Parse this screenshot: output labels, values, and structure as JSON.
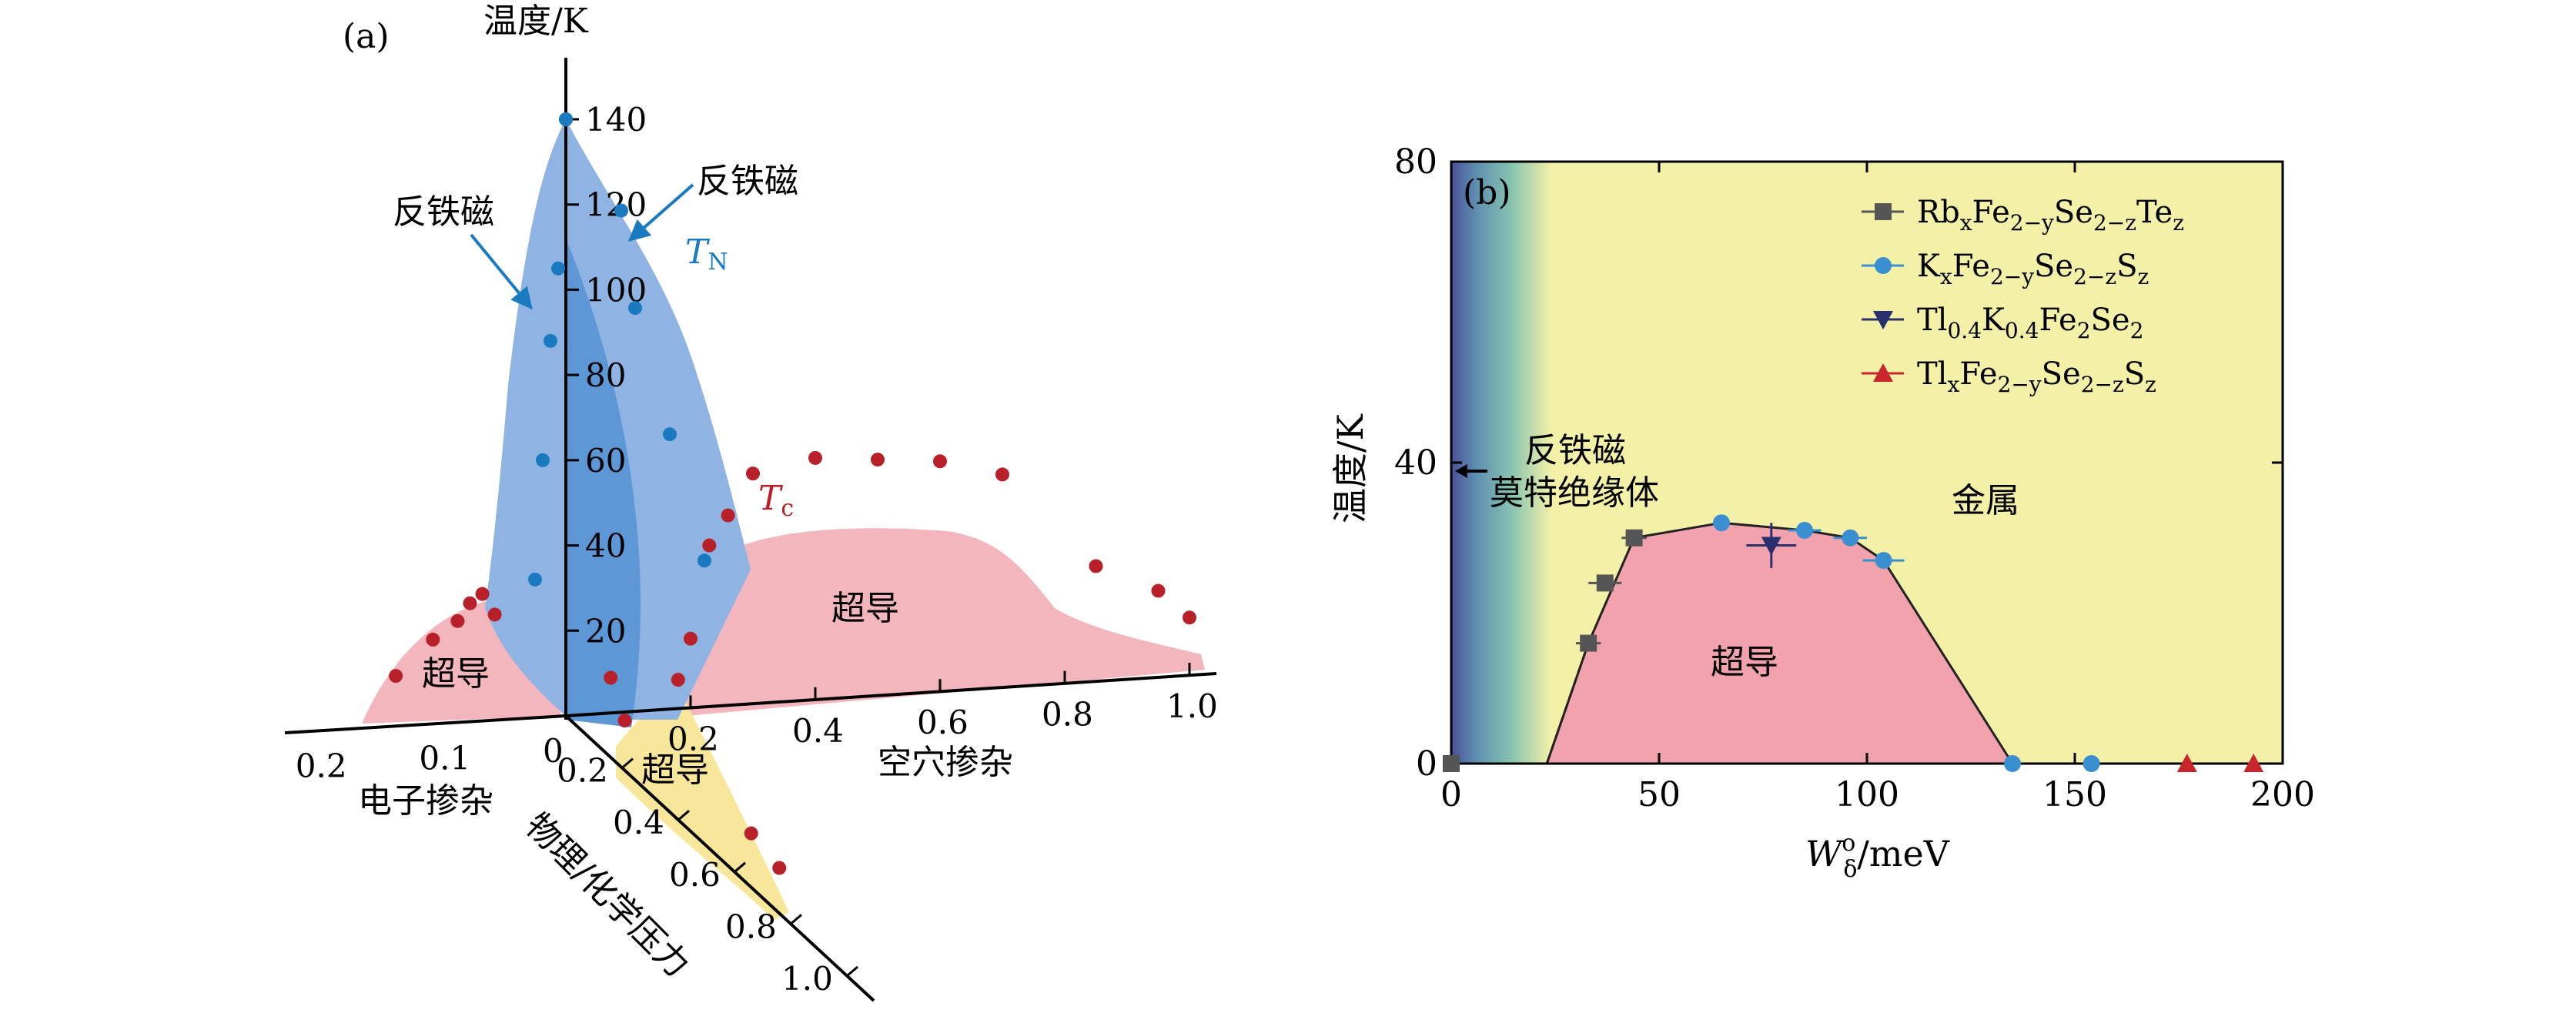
{
  "panel_a": {
    "label": "(a)",
    "temp_axis_label": "温度/K",
    "temp_ticks": [
      "140",
      "120",
      "100",
      "80",
      "60",
      "40",
      "20"
    ],
    "electron_axis_label": "电子掺杂",
    "electron_ticks": [
      "0.2",
      "0.1",
      "0"
    ],
    "hole_axis_label": "空穴掺杂",
    "hole_ticks": [
      "0.2",
      "0.4",
      "0.6",
      "0.8",
      "1.0"
    ],
    "pressure_axis_label": "物理/化学压力",
    "pressure_ticks": [
      "0.2",
      "0.4",
      "0.6",
      "0.8",
      "1.0"
    ],
    "afm_label_left": "反铁磁",
    "afm_label_right": "反铁磁",
    "tn_label": "T",
    "tn_sub": "N",
    "tc_label": "T",
    "tc_sub": "c",
    "sc_left": "超导",
    "sc_right": "超导",
    "sc_pressure": "超导",
    "colors": {
      "afm_fill": "#8fb4e3",
      "afm_front": "#5d97d6",
      "sc_fill": "#f4b6bd",
      "pressure_fill": "#f8e79a",
      "tn_point": "#1a7ac0",
      "tc_point": "#b8202a",
      "arrow": "#1a7ac0"
    }
  },
  "panel_b": {
    "label": "(b)",
    "ylabel": "温度/K",
    "xlabel_main": "W",
    "xlabel_sup": "o",
    "xlabel_sub": "δ",
    "xlabel_unit": "/meV",
    "x_ticks": [
      "0",
      "50",
      "100",
      "150",
      "200"
    ],
    "y_ticks": [
      "0",
      "40",
      "80"
    ],
    "region_afm_line1": "反铁磁",
    "region_afm_line2": "莫特绝缘体",
    "region_metal": "金属",
    "region_sc": "超导",
    "colors": {
      "background": "#f3f1a8",
      "sc_dome": "#f2a2ad",
      "mott_edge": "#4a4f9a",
      "mott_mid": "#6fb6a8"
    }
  },
  "chart_data": [
    {
      "type": "area",
      "panel": "a",
      "title": "",
      "axes": {
        "vertical": "温度/K",
        "vertical_range": [
          0,
          140
        ],
        "electron_doping_range": [
          0,
          0.2
        ],
        "hole_doping_range": [
          0,
          1.0
        ],
        "pressure_range": [
          0,
          1.0
        ]
      },
      "series": [
        {
          "name": "T_N",
          "region": "反铁磁",
          "points_electron_side": [
            {
              "doping": 0.0,
              "T": 140
            },
            {
              "doping": 0.01,
              "T": 105
            },
            {
              "doping": 0.02,
              "T": 88
            },
            {
              "doping": 0.03,
              "T": 60
            },
            {
              "doping": 0.04,
              "T": 32
            }
          ],
          "points_hole_side": [
            {
              "doping": 0.0,
              "T": 140
            },
            {
              "doping": 0.08,
              "T": 118
            },
            {
              "doping": 0.1,
              "T": 95
            },
            {
              "doping": 0.15,
              "T": 65
            },
            {
              "doping": 0.2,
              "T": 35
            }
          ]
        },
        {
          "name": "T_c",
          "points_electron_side": [
            {
              "doping": 0.15,
              "T": 12
            },
            {
              "doping": 0.12,
              "T": 20
            },
            {
              "doping": 0.1,
              "T": 24
            },
            {
              "doping": 0.09,
              "T": 28
            },
            {
              "doping": 0.08,
              "T": 30
            },
            {
              "doping": 0.07,
              "T": 25
            }
          ],
          "points_hole_side": [
            {
              "doping": 0.18,
              "T": 5
            },
            {
              "doping": 0.2,
              "T": 12
            },
            {
              "doping": 0.23,
              "T": 28
            },
            {
              "doping": 0.26,
              "T": 33
            },
            {
              "doping": 0.3,
              "T": 40
            },
            {
              "doping": 0.4,
              "T": 42
            },
            {
              "doping": 0.5,
              "T": 41
            },
            {
              "doping": 0.6,
              "T": 40
            },
            {
              "doping": 0.7,
              "T": 37
            },
            {
              "doping": 0.85,
              "T": 20
            },
            {
              "doping": 0.95,
              "T": 15
            },
            {
              "doping": 1.0,
              "T": 10
            }
          ],
          "points_pressure": [
            {
              "pressure": 0.05,
              "T": 12
            },
            {
              "pressure": 0.1,
              "T": 5
            },
            {
              "pressure": 0.55,
              "T": 6
            },
            {
              "pressure": 0.65,
              "T": 4
            }
          ]
        }
      ]
    },
    {
      "type": "scatter",
      "panel": "b",
      "title": "",
      "xlabel": "W_δ^o/meV",
      "ylabel": "温度/K",
      "xlim": [
        0,
        200
      ],
      "ylim": [
        0,
        80
      ],
      "grid": false,
      "legend_position": "top-right",
      "series": [
        {
          "name": "Rb_xFe_{2−y}Se_{2−z}Te_z",
          "marker": "square",
          "color": "#555555",
          "points": [
            {
              "x": 0,
              "y": 0
            },
            {
              "x": 33,
              "y": 16,
              "xerr": 3
            },
            {
              "x": 37,
              "y": 24,
              "xerr": 4
            },
            {
              "x": 44,
              "y": 30,
              "xerr": 3
            }
          ]
        },
        {
          "name": "K_xFe_{2−y}Se_{2−z}S_z",
          "marker": "circle",
          "color": "#3a8fd0",
          "points": [
            {
              "x": 65,
              "y": 32
            },
            {
              "x": 85,
              "y": 31,
              "xerr": 4
            },
            {
              "x": 96,
              "y": 30,
              "xerr": 4
            },
            {
              "x": 104,
              "y": 27,
              "xerr": 5
            },
            {
              "x": 135,
              "y": 0
            },
            {
              "x": 154,
              "y": 0
            }
          ]
        },
        {
          "name": "Tl_{0.4}K_{0.4}Fe_2Se_2",
          "marker": "triangle-down",
          "color": "#2a2f6e",
          "points": [
            {
              "x": 77,
              "y": 29,
              "xerr": 6,
              "yerr": 3
            }
          ]
        },
        {
          "name": "Tl_xFe_{2−y}Se_{2−z}S_z",
          "marker": "triangle-up",
          "color": "#c8252c",
          "points": [
            {
              "x": 177,
              "y": 0
            },
            {
              "x": 193,
              "y": 0
            }
          ]
        }
      ],
      "boundary": [
        {
          "x": 23,
          "y": 0
        },
        {
          "x": 33,
          "y": 16
        },
        {
          "x": 44,
          "y": 30
        },
        {
          "x": 65,
          "y": 32
        },
        {
          "x": 85,
          "y": 31
        },
        {
          "x": 96,
          "y": 30
        },
        {
          "x": 104,
          "y": 27
        },
        {
          "x": 135,
          "y": 0
        }
      ],
      "annotations": [
        "反铁磁",
        "莫特绝缘体",
        "金属",
        "超导"
      ]
    }
  ]
}
